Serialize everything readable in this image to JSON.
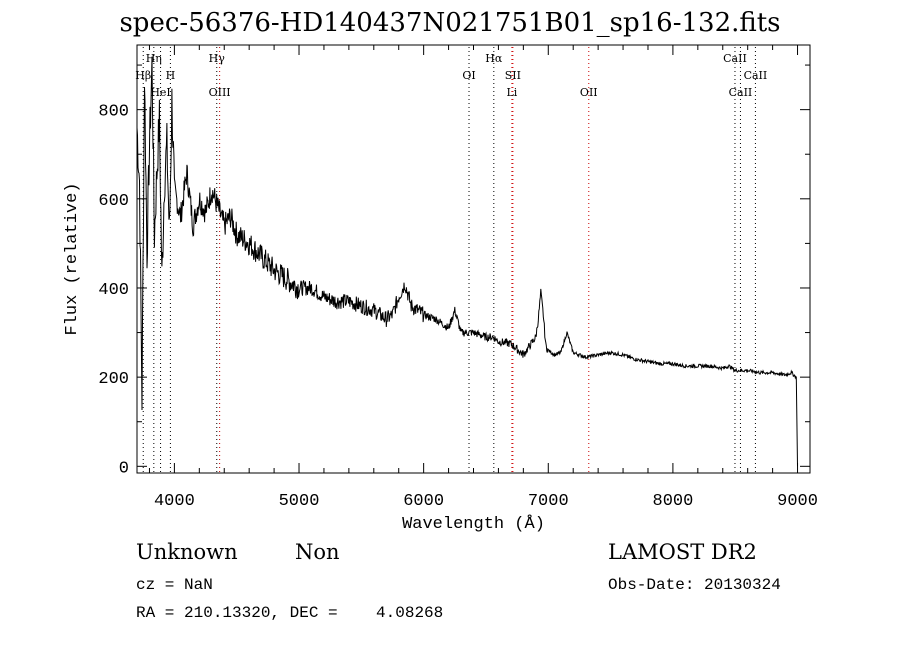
{
  "chart_data": {
    "type": "line",
    "title": "spec-56376-HD140437N021751B01_sp16-132.fits",
    "xlabel": "Wavelength (Å)",
    "ylabel": "Flux (relative)",
    "xlim": [
      3700,
      9100
    ],
    "ylim": [
      -15,
      945
    ],
    "x_ticks": [
      4000,
      5000,
      6000,
      7000,
      8000,
      9000
    ],
    "y_ticks": [
      0,
      200,
      400,
      600,
      800
    ],
    "grid": false,
    "series": [
      {
        "x": [
          3700,
          3720,
          3740,
          3760,
          3780,
          3800,
          3820,
          3840,
          3860,
          3880,
          3900,
          3920,
          3940,
          3960,
          3980,
          4000,
          4050,
          4100,
          4150,
          4200,
          4250,
          4300,
          4350,
          4400,
          4450,
          4500,
          4600,
          4700,
          4800,
          4900,
          5000,
          5100,
          5200,
          5300,
          5400,
          5500,
          5600,
          5700,
          5750,
          5800,
          5850,
          5900,
          6000,
          6100,
          6200,
          6250,
          6300,
          6400,
          6500,
          6560,
          6600,
          6700,
          6800,
          6850,
          6900,
          6920,
          6940,
          6960,
          6980,
          7000,
          7050,
          7100,
          7150,
          7200,
          7300,
          7400,
          7500,
          7600,
          7700,
          7800,
          7900,
          8000,
          8100,
          8200,
          8300,
          8400,
          8450,
          8500,
          8600,
          8700,
          8800,
          8900,
          8950,
          8990,
          9000
        ],
        "y": [
          760,
          640,
          150,
          880,
          480,
          720,
          900,
          520,
          660,
          780,
          420,
          640,
          720,
          520,
          820,
          620,
          560,
          660,
          540,
          600,
          570,
          620,
          580,
          540,
          560,
          520,
          500,
          470,
          440,
          420,
          400,
          400,
          380,
          370,
          370,
          360,
          350,
          330,
          340,
          380,
          410,
          360,
          340,
          330,
          310,
          350,
          300,
          300,
          290,
          290,
          280,
          275,
          250,
          270,
          290,
          330,
          390,
          340,
          270,
          260,
          250,
          255,
          300,
          255,
          245,
          250,
          255,
          250,
          240,
          235,
          230,
          230,
          225,
          225,
          225,
          220,
          225,
          215,
          215,
          210,
          210,
          205,
          210,
          200,
          0
        ]
      }
    ],
    "lines": [
      {
        "label": "Hη",
        "x": 3835,
        "row": 1,
        "color": "#000000"
      },
      {
        "label": "Hγ",
        "x": 4340,
        "row": 1,
        "color": "#000000"
      },
      {
        "label": "Hα",
        "x": 6563,
        "row": 1,
        "color": "#000000"
      },
      {
        "label": "CaII",
        "x": 8498,
        "row": 1,
        "color": "#000000"
      },
      {
        "label": "Hβ",
        "x": 3750,
        "row": 2,
        "color": "#000000"
      },
      {
        "label": "H",
        "x": 3968,
        "row": 2,
        "color": "#000000"
      },
      {
        "label": "OI",
        "x": 6364,
        "row": 2,
        "color": "#000000"
      },
      {
        "label": "SII",
        "x": 6716,
        "row": 2,
        "color": "#cc0000"
      },
      {
        "label": "CaII",
        "x": 8662,
        "row": 2,
        "color": "#000000"
      },
      {
        "label": "HeI",
        "x": 3889,
        "row": 3,
        "color": "#000000"
      },
      {
        "label": "OIII",
        "x": 4363,
        "row": 3,
        "color": "#cc0000"
      },
      {
        "label": "Li",
        "x": 6708,
        "row": 3,
        "color": "#cc0000"
      },
      {
        "label": "OII",
        "x": 7325,
        "row": 3,
        "color": "#cc0000"
      },
      {
        "label": "CaII",
        "x": 8542,
        "row": 3,
        "color": "#000000"
      }
    ]
  },
  "info": {
    "class": "Unknown",
    "subclass": "Non",
    "survey": "LAMOST DR2",
    "cz": "cz = NaN",
    "obs_date": "Obs-Date: 20130324",
    "coords": "RA = 210.13320, DEC =    4.08268"
  }
}
